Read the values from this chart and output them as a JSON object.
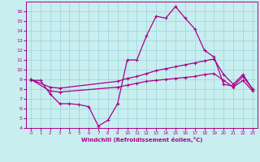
{
  "xlabel": "Windchill (Refroidissement éolien,°C)",
  "background_color": "#c8eef0",
  "grid_color": "#a0d8dc",
  "line_color": "#aa0088",
  "ylim": [
    4,
    17
  ],
  "xlim": [
    -0.5,
    23.5
  ],
  "yticks": [
    4,
    5,
    6,
    7,
    8,
    9,
    10,
    11,
    12,
    13,
    14,
    15,
    16
  ],
  "xticks": [
    0,
    1,
    2,
    3,
    4,
    5,
    6,
    7,
    8,
    9,
    10,
    11,
    12,
    13,
    14,
    15,
    16,
    17,
    18,
    19,
    20,
    21,
    22,
    23
  ],
  "line1_x": [
    0,
    1,
    2,
    3,
    4,
    5,
    6,
    7,
    8,
    9,
    10,
    11,
    12,
    13,
    14,
    15,
    16,
    17,
    18,
    19,
    20,
    21,
    22,
    23
  ],
  "line1_y": [
    8.9,
    8.9,
    7.5,
    6.5,
    6.5,
    6.4,
    6.2,
    4.2,
    4.8,
    6.5,
    11.0,
    11.0,
    13.5,
    15.5,
    15.3,
    16.5,
    15.3,
    14.2,
    12.0,
    11.3,
    8.5,
    8.3,
    9.3,
    8.0
  ],
  "line2_x": [
    0,
    2,
    3,
    9,
    10,
    11,
    12,
    13,
    14,
    15,
    16,
    17,
    18,
    19,
    20,
    21,
    22,
    23
  ],
  "line2_y": [
    9.0,
    8.2,
    8.1,
    8.8,
    9.1,
    9.3,
    9.6,
    9.9,
    10.1,
    10.3,
    10.5,
    10.7,
    10.9,
    11.1,
    9.5,
    8.5,
    9.5,
    8.0
  ],
  "line3_x": [
    0,
    2,
    3,
    9,
    10,
    11,
    12,
    13,
    14,
    15,
    16,
    17,
    18,
    19,
    20,
    21,
    22,
    23
  ],
  "line3_y": [
    9.0,
    7.8,
    7.7,
    8.2,
    8.4,
    8.6,
    8.8,
    8.9,
    9.0,
    9.1,
    9.2,
    9.3,
    9.5,
    9.6,
    8.9,
    8.2,
    8.9,
    7.8
  ]
}
